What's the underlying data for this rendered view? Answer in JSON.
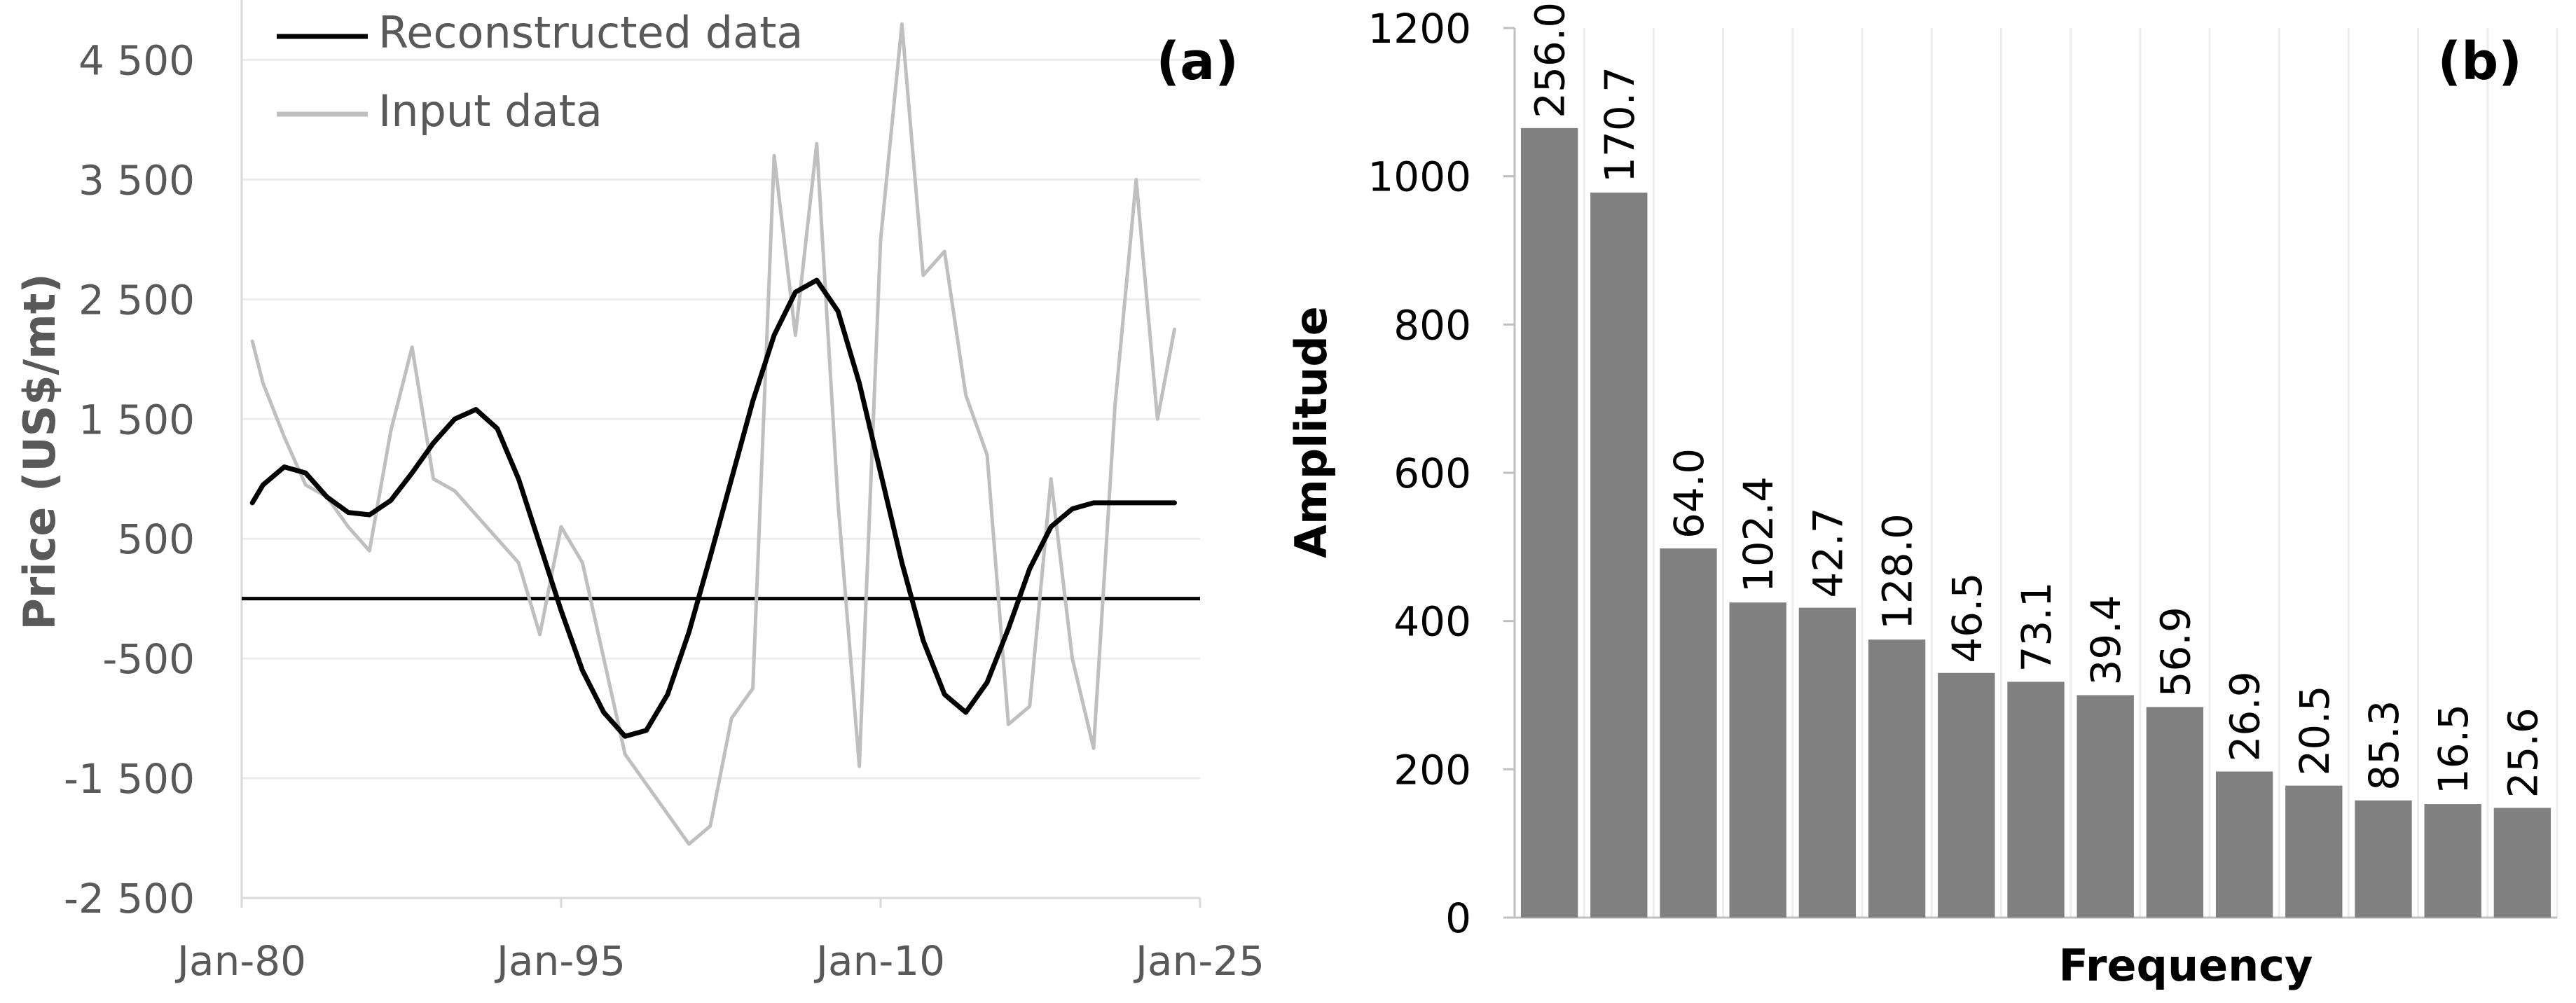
{
  "chart_data": [
    {
      "type": "line",
      "panel_label": "(a)",
      "ylabel": "Price (US$/mt)",
      "xlabel": "",
      "x_ticks": [
        "Jan-80",
        "Jan-95",
        "Jan-10",
        "Jan-25"
      ],
      "x_tick_values": [
        1980,
        1995,
        2010,
        2025
      ],
      "y_ticks": [
        "4 500",
        "3 500",
        "2 500",
        "1 500",
        "500",
        "-500",
        "-1 500",
        "-2 500"
      ],
      "y_tick_values": [
        4500,
        3500,
        2500,
        1500,
        500,
        -500,
        -1500,
        -2500
      ],
      "xlim": [
        1980,
        2025
      ],
      "ylim": [
        -2500,
        5000
      ],
      "grid": "horizontal",
      "legend_position": "top-left",
      "series": [
        {
          "name": "Reconstructed data",
          "color": "#000000",
          "x": [
            1980.5,
            1981,
            1982,
            1983,
            1984,
            1985,
            1986,
            1987,
            1988,
            1989,
            1990,
            1991,
            1992,
            1993,
            1994,
            1995,
            1996,
            1997,
            1998,
            1999,
            2000,
            2001,
            2002,
            2003,
            2004,
            2005,
            2006,
            2007,
            2008,
            2009,
            2010,
            2011,
            2012,
            2013,
            2014,
            2015,
            2016,
            2017,
            2018,
            2019,
            2020,
            2021,
            2022,
            2023,
            2023.8
          ],
          "values": [
            800,
            950,
            1100,
            1050,
            850,
            720,
            700,
            820,
            1050,
            1300,
            1500,
            1580,
            1420,
            1000,
            450,
            -100,
            -600,
            -950,
            -1150,
            -1100,
            -800,
            -280,
            350,
            1000,
            1650,
            2200,
            2560,
            2660,
            2400,
            1800,
            1050,
            300,
            -350,
            -800,
            -950,
            -700,
            -250,
            250,
            600,
            750,
            800,
            800,
            800,
            800,
            800
          ]
        },
        {
          "name": "Input data",
          "color": "#bfbfbf",
          "x": [
            1980.5,
            1981,
            1982,
            1983,
            1984,
            1985,
            1986,
            1987,
            1988,
            1989,
            1990,
            1991,
            1992,
            1993,
            1994,
            1995,
            1996,
            1997,
            1998,
            1999,
            2000,
            2001,
            2002,
            2003,
            2004,
            2005,
            2006,
            2007,
            2008,
            2009,
            2010,
            2011,
            2012,
            2013,
            2014,
            2015,
            2016,
            2017,
            2018,
            2019,
            2020,
            2021,
            2022,
            2023,
            2023.8
          ],
          "values": [
            2150,
            1800,
            1350,
            950,
            850,
            600,
            400,
            1400,
            2100,
            1000,
            900,
            700,
            500,
            300,
            -300,
            600,
            300,
            -500,
            -1300,
            -1550,
            -1800,
            -2050,
            -1900,
            -1000,
            -750,
            3700,
            2200,
            3800,
            800,
            -1400,
            3000,
            4800,
            2700,
            2900,
            1700,
            1200,
            -1050,
            -900,
            1000,
            -500,
            -1250,
            1600,
            3500,
            1500,
            2250
          ]
        }
      ],
      "zero_line_color": "#000000"
    },
    {
      "type": "bar",
      "panel_label": "(b)",
      "ylabel": "Amplitude",
      "xlabel": "Frequency",
      "ylim": [
        0,
        1200
      ],
      "y_ticks": [
        "0",
        "200",
        "400",
        "600",
        "800",
        "1000",
        "1200"
      ],
      "y_tick_values": [
        0,
        200,
        400,
        600,
        800,
        1000,
        1200
      ],
      "grid": "vertical",
      "bar_color": "#808080",
      "categories": [
        "256.0",
        "170.7",
        "64.0",
        "102.4",
        "42.7",
        "128.0",
        "46.5",
        "73.1",
        "39.4",
        "56.9",
        "26.9",
        "20.5",
        "85.3",
        "16.5",
        "25.6"
      ],
      "values": [
        1065,
        978,
        498,
        425,
        418,
        375,
        330,
        318,
        300,
        284,
        197,
        178,
        158,
        153,
        148
      ]
    }
  ]
}
